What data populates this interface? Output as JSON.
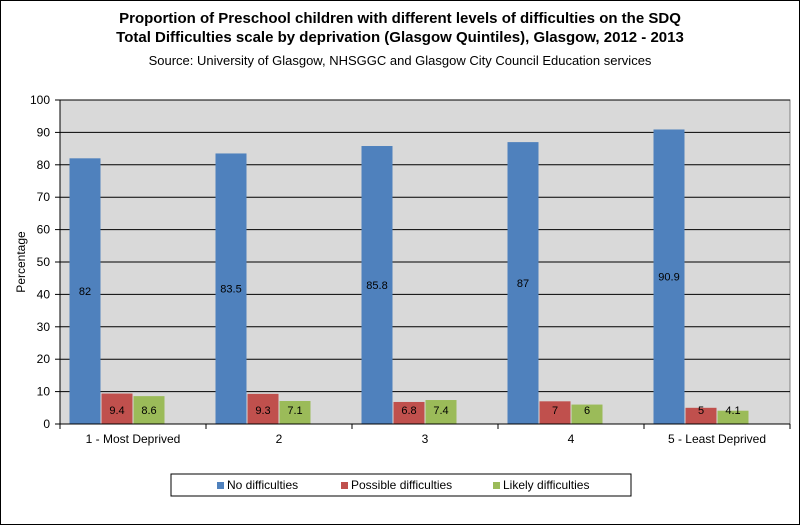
{
  "chart_data": {
    "type": "bar",
    "title_line1": "Proportion of Preschool children with different levels of difficulties on the SDQ",
    "title_line2": "Total Difficulties scale by deprivation (Glasgow Quintiles), Glasgow, 2012 - 2013",
    "subtitle": "Source: University of Glasgow, NHSGGC and Glasgow City Council Education services",
    "xlabel": "",
    "ylabel": "Percentage",
    "ylim": [
      0,
      100
    ],
    "yticks": [
      0,
      10,
      20,
      30,
      40,
      50,
      60,
      70,
      80,
      90,
      100
    ],
    "grid": true,
    "legend_position": "bottom",
    "categories": [
      "1 - Most Deprived",
      "2",
      "3",
      "4",
      "5 - Least Deprived"
    ],
    "series": [
      {
        "name": "No difficulties",
        "color": "#4f81bd",
        "values": [
          82,
          83.5,
          85.8,
          87,
          90.9
        ],
        "labels": [
          "82",
          "83.5",
          "85.8",
          "87",
          "90.9"
        ]
      },
      {
        "name": "Possible difficulties",
        "color": "#c0504d",
        "values": [
          9.4,
          9.3,
          6.8,
          7,
          5
        ],
        "labels": [
          "9.4",
          "9.3",
          "6.8",
          "7",
          "5"
        ]
      },
      {
        "name": "Likely difficulties",
        "color": "#9bbb59",
        "values": [
          8.6,
          7.1,
          7.4,
          6,
          4.1
        ],
        "labels": [
          "8.6",
          "7.1",
          "7.4",
          "6",
          "4.1"
        ]
      }
    ],
    "plot_background": "#d9d9d9"
  }
}
